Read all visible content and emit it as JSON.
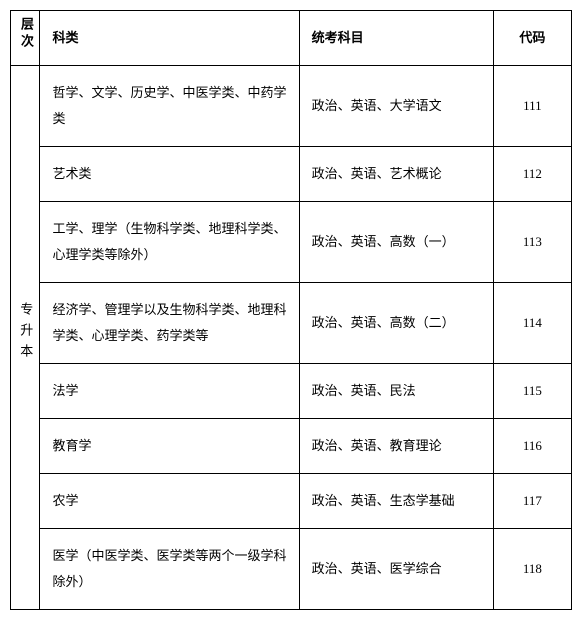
{
  "headers": {
    "level": "层次",
    "category": "科类",
    "subjects": "统考科目",
    "code": "代码"
  },
  "level_label": "专升本",
  "rows": [
    {
      "category": "哲学、文学、历史学、中医学类、中药学类",
      "subjects": "政治、英语、大学语文",
      "code": "111"
    },
    {
      "category": "艺术类",
      "subjects": "政治、英语、艺术概论",
      "code": "112"
    },
    {
      "category": "工学、理学（生物科学类、地理科学类、心理学类等除外）",
      "subjects": "政治、英语、高数（一）",
      "code": "113"
    },
    {
      "category": "经济学、管理学以及生物科学类、地理科学类、心理学类、药学类等",
      "subjects": "政治、英语、高数（二）",
      "code": "114"
    },
    {
      "category": "法学",
      "subjects": "政治、英语、民法",
      "code": "115"
    },
    {
      "category": "教育学",
      "subjects": "政治、英语、教育理论",
      "code": "116"
    },
    {
      "category": "农学",
      "subjects": "政治、英语、生态学基础",
      "code": "117"
    },
    {
      "category": "医学（中医学类、医学类等两个一级学科除外）",
      "subjects": "政治、英语、医学综合",
      "code": "118"
    }
  ]
}
